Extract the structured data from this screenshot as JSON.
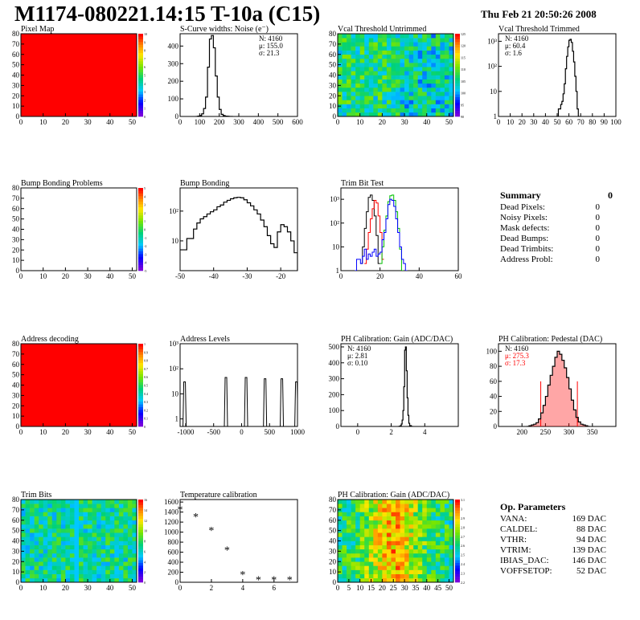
{
  "header": {
    "title": "M1174-080221.14:15 T-10a (C15)",
    "date": "Thu Feb 21 20:50:26 2008"
  },
  "colors": {
    "red": "#ff0000",
    "black": "#000000",
    "green": "#00c000",
    "blue": "#0000ff"
  },
  "chart_data": [
    {
      "id": "pixel_map",
      "type": "heatmap",
      "title": "Pixel Map",
      "xlim": [
        0,
        52
      ],
      "ylim": [
        0,
        80
      ],
      "xticks": [
        "0",
        "10",
        "20",
        "30",
        "40",
        "50"
      ],
      "yticks": [
        "0",
        "10",
        "20",
        "30",
        "40",
        "50",
        "60",
        "70",
        "80"
      ],
      "fill": "uniform",
      "value": 10,
      "fill_color": "#ff0000",
      "zlim": [
        0,
        10
      ],
      "zticks": [
        "10",
        "9",
        "8",
        "7",
        "6",
        "5",
        "4",
        "3",
        "2",
        "1",
        "0"
      ]
    },
    {
      "id": "scurve_noise",
      "type": "line",
      "title": "S-Curve widths: Noise (e⁻)",
      "xlim": [
        0,
        600
      ],
      "ylim": [
        0,
        470
      ],
      "xticks": [
        "0",
        "100",
        "200",
        "300",
        "400",
        "500",
        "600"
      ],
      "yticks": [
        "0",
        "100",
        "200",
        "300",
        "400"
      ],
      "stats": [
        "N: 4160",
        "μ: 155.0",
        "σ: 21.3"
      ],
      "x": [
        80,
        90,
        100,
        110,
        120,
        130,
        140,
        150,
        160,
        170,
        180,
        190,
        200,
        210,
        220,
        230,
        240,
        250,
        260
      ],
      "values": [
        0,
        2,
        5,
        15,
        45,
        110,
        280,
        440,
        460,
        390,
        230,
        110,
        40,
        12,
        5,
        2,
        1,
        0,
        0
      ]
    },
    {
      "id": "vcal_untrimmed",
      "type": "heatmap",
      "title": "Vcal Threshold Untrimmed",
      "xlim": [
        0,
        52
      ],
      "ylim": [
        0,
        80
      ],
      "xticks": [
        "0",
        "10",
        "20",
        "30",
        "40",
        "50"
      ],
      "yticks": [
        "0",
        "10",
        "20",
        "30",
        "40",
        "50",
        "60",
        "70",
        "80"
      ],
      "zlim": [
        85,
        125
      ],
      "zticks": [
        "125",
        "120",
        "115",
        "110",
        "105",
        "100",
        "95",
        "90"
      ]
    },
    {
      "id": "vcal_trimmed",
      "type": "line",
      "title": "Vcal Threshold Trimmed",
      "yscale": "log",
      "xlim": [
        0,
        100
      ],
      "ylim": [
        1,
        2000
      ],
      "xticks": [
        "0",
        "10",
        "20",
        "30",
        "40",
        "50",
        "60",
        "70",
        "80",
        "90",
        "100"
      ],
      "yticks": [
        "1",
        "10",
        "10²",
        "10³"
      ],
      "stats": [
        "N: 4160",
        "μ: 60.4",
        "σ:  1.6"
      ],
      "x": [
        49,
        51,
        53,
        54,
        55,
        56,
        57,
        58,
        59,
        60,
        61,
        62,
        63,
        64,
        65,
        66,
        67,
        68
      ],
      "values": [
        1,
        2,
        3,
        4,
        8,
        20,
        80,
        250,
        600,
        1100,
        1200,
        900,
        400,
        150,
        40,
        10,
        2,
        0
      ]
    },
    {
      "id": "bump_problems",
      "type": "heatmap",
      "title": "Bump Bonding Problems",
      "xlim": [
        0,
        52
      ],
      "ylim": [
        0,
        80
      ],
      "xticks": [
        "0",
        "10",
        "20",
        "30",
        "40",
        "50"
      ],
      "yticks": [
        "0",
        "10",
        "20",
        "30",
        "40",
        "50",
        "60",
        "70",
        "80"
      ],
      "fill": "empty",
      "zlim": [
        -5,
        5
      ],
      "zticks": [
        "5",
        "4",
        "3",
        "2",
        "1",
        "0",
        "-1",
        "-2",
        "-3",
        "-4",
        "-5"
      ]
    },
    {
      "id": "bump_bonding",
      "type": "line",
      "title": "Bump Bonding",
      "yscale": "log",
      "xlim": [
        -50,
        -15
      ],
      "ylim": [
        1,
        600
      ],
      "xticks": [
        "-50",
        "-40",
        "-30",
        "-20"
      ],
      "yticks": [
        "10",
        "10²"
      ],
      "x": [
        -50,
        -48,
        -46,
        -45,
        -44,
        -43,
        -42,
        -41,
        -40,
        -39,
        -38,
        -37,
        -36,
        -35,
        -34,
        -33,
        -32,
        -31,
        -30,
        -29,
        -28,
        -27,
        -26,
        -25,
        -24,
        -23,
        -22,
        -21,
        -20,
        -19,
        -18,
        -17,
        -16,
        -15
      ],
      "values": [
        5,
        12,
        25,
        40,
        55,
        65,
        80,
        95,
        110,
        140,
        160,
        200,
        230,
        260,
        280,
        290,
        280,
        240,
        190,
        150,
        110,
        80,
        50,
        30,
        15,
        8,
        6,
        20,
        35,
        30,
        20,
        10,
        4,
        1
      ]
    },
    {
      "id": "trim_bit_test",
      "type": "line",
      "title": "Trim Bit Test",
      "yscale": "log",
      "xlim": [
        0,
        60
      ],
      "ylim": [
        1,
        3000
      ],
      "xticks": [
        "0",
        "20",
        "40",
        "60"
      ],
      "yticks": [
        "1",
        "10",
        "10²",
        "10³"
      ],
      "series": [
        {
          "color": "#000000",
          "x": [
            10,
            11,
            12,
            13,
            14,
            15,
            16,
            17,
            18,
            19
          ],
          "values": [
            2,
            10,
            60,
            300,
            1200,
            1500,
            900,
            200,
            30,
            2
          ]
        },
        {
          "color": "#ff0000",
          "x": [
            12,
            13,
            14,
            15,
            16,
            17,
            18,
            19,
            20,
            21
          ],
          "values": [
            2,
            8,
            40,
            150,
            400,
            900,
            700,
            200,
            40,
            3
          ]
        },
        {
          "color": "#00c000",
          "x": [
            20,
            21,
            22,
            23,
            24,
            25,
            26,
            27,
            28,
            29,
            30,
            31
          ],
          "values": [
            2,
            10,
            50,
            200,
            800,
            1400,
            1500,
            900,
            300,
            60,
            8,
            1
          ]
        },
        {
          "color": "#0000ff",
          "x": [
            7,
            8,
            9,
            10,
            11,
            12,
            13,
            14,
            15,
            16,
            17,
            18,
            19,
            20,
            21,
            22,
            23,
            24,
            25,
            26,
            27,
            28,
            29,
            30,
            31,
            32,
            33
          ],
          "values": [
            1,
            3,
            3,
            2,
            4,
            8,
            3,
            5,
            4,
            6,
            8,
            4,
            5,
            6,
            20,
            40,
            150,
            600,
            1000,
            900,
            500,
            150,
            40,
            10,
            3,
            2,
            1
          ]
        }
      ]
    },
    {
      "id": "summary",
      "type": "table",
      "title": "Summary",
      "total": "0",
      "rows": [
        {
          "label": "Dead Pixels:",
          "value": "0"
        },
        {
          "label": "Noisy Pixels:",
          "value": "0"
        },
        {
          "label": "Mask defects:",
          "value": "0"
        },
        {
          "label": "Dead Bumps:",
          "value": "0"
        },
        {
          "label": "Dead Trimbits:",
          "value": "0"
        },
        {
          "label": "Address Probl:",
          "value": "0"
        }
      ]
    },
    {
      "id": "address_decoding",
      "type": "heatmap",
      "title": "Address decoding",
      "xlim": [
        0,
        52
      ],
      "ylim": [
        0,
        80
      ],
      "xticks": [
        "0",
        "10",
        "20",
        "30",
        "40",
        "50"
      ],
      "yticks": [
        "0",
        "10",
        "20",
        "30",
        "40",
        "50",
        "60",
        "70",
        "80"
      ],
      "fill": "uniform",
      "value": 1,
      "fill_color": "#ff0000",
      "zlim": [
        0,
        1
      ],
      "zticks": [
        "1",
        "0.9",
        "0.8",
        "0.7",
        "0.6",
        "0.5",
        "0.4",
        "0.3",
        "0.2",
        "0.1",
        "0"
      ]
    },
    {
      "id": "address_levels",
      "type": "line",
      "title": "Address Levels",
      "yscale": "log",
      "xlim": [
        -1100,
        1000
      ],
      "ylim": [
        0.5,
        1000
      ],
      "xticks": [
        "-1000",
        "-500",
        "0",
        "500",
        "1000"
      ],
      "yticks": [
        "1",
        "10",
        "10²",
        "10³"
      ],
      "peaks": [
        {
          "x": -1020,
          "h": 30
        },
        {
          "x": -280,
          "h": 45
        },
        {
          "x": 80,
          "h": 45
        },
        {
          "x": 420,
          "h": 40
        },
        {
          "x": 720,
          "h": 40
        },
        {
          "x": 980,
          "h": 30
        }
      ]
    },
    {
      "id": "ph_gain",
      "type": "line",
      "title": "PH Calibration: Gain (ADC/DAC)",
      "xlim": [
        -1,
        6
      ],
      "ylim": [
        0,
        520
      ],
      "xticks": [
        "0",
        "2",
        "4"
      ],
      "yticks": [
        "0",
        "100",
        "200",
        "300",
        "400",
        "500"
      ],
      "stats": [
        "N: 4160",
        "μ: 2.81",
        "σ: 0.10"
      ],
      "x": [
        2.4,
        2.5,
        2.55,
        2.6,
        2.65,
        2.7,
        2.75,
        2.8,
        2.85,
        2.9,
        2.95,
        3.0,
        3.05,
        3.1,
        3.2
      ],
      "values": [
        0,
        2,
        5,
        15,
        40,
        100,
        250,
        480,
        500,
        350,
        180,
        70,
        20,
        5,
        0
      ]
    },
    {
      "id": "ph_pedestal",
      "type": "line",
      "title": "PH Calibration: Pedestal (DAC)",
      "xlim": [
        150,
        400
      ],
      "ylim": [
        0,
        110
      ],
      "xticks": [
        "200",
        "250",
        "300",
        "350"
      ],
      "yticks": [
        "0",
        "20",
        "40",
        "60",
        "80",
        "100"
      ],
      "stats": [
        "N: 4160",
        "μ: 275.3",
        "σ: 17.3"
      ],
      "cut_lines": [
        240,
        318
      ],
      "fill_color": "#ff0000",
      "x": [
        210,
        215,
        220,
        225,
        230,
        235,
        240,
        245,
        250,
        255,
        260,
        265,
        270,
        275,
        280,
        285,
        290,
        295,
        300,
        305,
        310,
        315,
        320,
        325,
        330,
        335,
        340
      ],
      "values": [
        0,
        1,
        2,
        3,
        5,
        10,
        18,
        28,
        40,
        55,
        68,
        80,
        92,
        100,
        96,
        88,
        78,
        65,
        50,
        35,
        22,
        12,
        6,
        3,
        2,
        1,
        0
      ]
    },
    {
      "id": "trim_bits",
      "type": "heatmap",
      "title": "Trim Bits",
      "xlim": [
        0,
        52
      ],
      "ylim": [
        0,
        80
      ],
      "xticks": [
        "0",
        "10",
        "20",
        "30",
        "40",
        "50"
      ],
      "yticks": [
        "0",
        "10",
        "20",
        "30",
        "40",
        "50",
        "60",
        "70",
        "80"
      ],
      "zlim": [
        0,
        16
      ],
      "zticks": [
        "16",
        "14",
        "12",
        "10",
        "8",
        "6",
        "4",
        "2",
        "0"
      ]
    },
    {
      "id": "temp_calibration",
      "type": "scatter",
      "title": "Temperature calibration",
      "xlim": [
        0,
        7.5
      ],
      "ylim": [
        0,
        1650
      ],
      "xticks": [
        "0",
        "2",
        "4",
        "6"
      ],
      "yticks": [
        "0",
        "200",
        "400",
        "600",
        "800",
        "1000",
        "1200",
        "1400",
        "1600"
      ],
      "x": [
        0,
        1,
        2,
        3,
        4,
        5,
        6,
        7
      ],
      "values": [
        1460,
        1310,
        1040,
        650,
        160,
        60,
        60,
        60
      ]
    },
    {
      "id": "ph_gain_map",
      "type": "heatmap",
      "title": "PH Calibration: Gain (ADC/DAC)",
      "xlim": [
        0,
        52
      ],
      "ylim": [
        0,
        80
      ],
      "xticks": [
        "0",
        "5",
        "10",
        "15",
        "20",
        "25",
        "30",
        "35",
        "40",
        "45",
        "50"
      ],
      "yticks": [
        "0",
        "10",
        "20",
        "30",
        "40",
        "50",
        "60",
        "70",
        "80"
      ],
      "zlim": [
        2.2,
        3.1
      ],
      "zticks": [
        "3.1",
        "3",
        "2.9",
        "2.8",
        "2.7",
        "2.6",
        "2.5",
        "2.4",
        "2.3",
        "2.2"
      ]
    },
    {
      "id": "op_params",
      "type": "table",
      "title": "Op. Parameters",
      "rows": [
        {
          "label": "VANA:",
          "value": "169 DAC"
        },
        {
          "label": "CALDEL:",
          "value": "88 DAC"
        },
        {
          "label": "VTHR:",
          "value": "94 DAC"
        },
        {
          "label": "VTRIM:",
          "value": "139 DAC"
        },
        {
          "label": "IBIAS_DAC:",
          "value": "146 DAC"
        },
        {
          "label": "VOFFSETOP:",
          "value": "52 DAC"
        }
      ]
    }
  ]
}
